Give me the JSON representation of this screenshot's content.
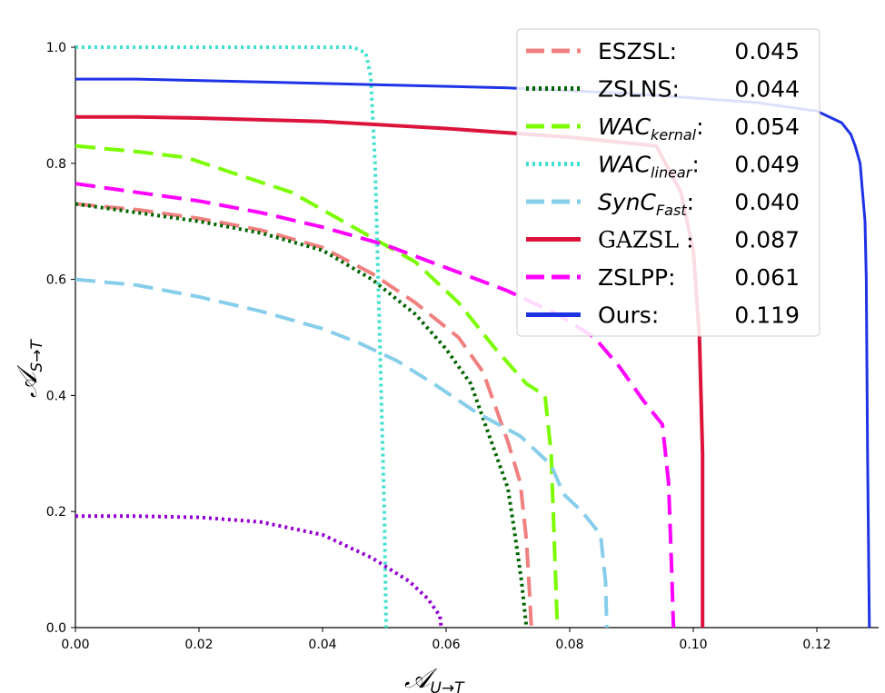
{
  "chart_data": {
    "type": "line",
    "xlabel_main": "𝒜",
    "xlabel_sub": "U→T",
    "ylabel_main": "𝒜",
    "ylabel_sub": "S→T",
    "xlim": [
      0,
      0.13
    ],
    "ylim": [
      0,
      1.0
    ],
    "xticks": [
      "0.00",
      "0.02",
      "0.04",
      "0.06",
      "0.08",
      "0.10",
      "0.12"
    ],
    "xtick_values": [
      0,
      0.02,
      0.04,
      0.06,
      0.08,
      0.1,
      0.12
    ],
    "yticks": [
      "0.0",
      "0.2",
      "0.4",
      "0.6",
      "0.8",
      "1.0"
    ],
    "ytick_values": [
      0,
      0.2,
      0.4,
      0.6,
      0.8,
      1.0
    ],
    "legend_position": "top-right",
    "series": [
      {
        "name": "ESZSL",
        "score": "0.045",
        "color": "#F08080",
        "style": "dashed",
        "x": [
          0.0,
          0.01,
          0.02,
          0.03,
          0.04,
          0.048,
          0.055,
          0.062,
          0.066,
          0.068,
          0.07,
          0.072,
          0.073,
          0.0735,
          0.0738
        ],
        "y": [
          0.73,
          0.72,
          0.705,
          0.685,
          0.655,
          0.61,
          0.56,
          0.5,
          0.44,
          0.38,
          0.32,
          0.25,
          0.15,
          0.06,
          0.0
        ]
      },
      {
        "name": "ZSLNS",
        "score": "0.044",
        "color": "#006400",
        "style": "dotted",
        "x": [
          0.0,
          0.01,
          0.02,
          0.03,
          0.04,
          0.048,
          0.055,
          0.06,
          0.064,
          0.066,
          0.068,
          0.07,
          0.071,
          0.0722,
          0.073
        ],
        "y": [
          0.73,
          0.715,
          0.7,
          0.68,
          0.65,
          0.6,
          0.54,
          0.48,
          0.42,
          0.36,
          0.3,
          0.24,
          0.17,
          0.08,
          0.0
        ]
      },
      {
        "name": "WAC_kernal",
        "label_main": "WAC",
        "label_sub": "kernal",
        "score": "0.054",
        "color": "#7CFC00",
        "style": "dashed",
        "x": [
          0.0,
          0.01,
          0.018,
          0.025,
          0.035,
          0.045,
          0.055,
          0.062,
          0.068,
          0.073,
          0.076,
          0.077,
          0.0775,
          0.078
        ],
        "y": [
          0.83,
          0.82,
          0.81,
          0.785,
          0.75,
          0.69,
          0.63,
          0.56,
          0.48,
          0.42,
          0.4,
          0.3,
          0.15,
          0.0
        ]
      },
      {
        "name": "WAC_linear",
        "label_main": "WAC",
        "label_sub": "linear",
        "score": "0.049",
        "color": "#40E0D0",
        "style": "dotted",
        "x": [
          0.0,
          0.02,
          0.045,
          0.047,
          0.0478,
          0.0485,
          0.049,
          0.0495,
          0.05,
          0.0503
        ],
        "y": [
          1.0,
          1.0,
          1.0,
          0.99,
          0.95,
          0.8,
          0.6,
          0.4,
          0.2,
          0.0
        ]
      },
      {
        "name": "SynC_Fast",
        "label_main": "SynC",
        "label_sub": "Fast",
        "score": "0.040",
        "color": "#87CEEB",
        "style": "dashed",
        "x": [
          0.0,
          0.01,
          0.02,
          0.03,
          0.04,
          0.046,
          0.052,
          0.058,
          0.065,
          0.072,
          0.077,
          0.079,
          0.082,
          0.085,
          0.0858,
          0.086
        ],
        "y": [
          0.6,
          0.59,
          0.57,
          0.545,
          0.515,
          0.49,
          0.46,
          0.42,
          0.37,
          0.33,
          0.28,
          0.23,
          0.2,
          0.16,
          0.08,
          0.0
        ]
      },
      {
        "name": "GAZSL",
        "score": "0.087",
        "color": "#DC143C",
        "style": "solid",
        "x": [
          0.0,
          0.01,
          0.02,
          0.04,
          0.06,
          0.08,
          0.094,
          0.098,
          0.1,
          0.101,
          0.1015,
          0.1015
        ],
        "y": [
          0.88,
          0.88,
          0.878,
          0.872,
          0.86,
          0.845,
          0.83,
          0.75,
          0.65,
          0.5,
          0.3,
          0.0
        ]
      },
      {
        "name": "ZSLPP",
        "score": "0.061",
        "color": "#FF00FF",
        "style": "dashed",
        "x": [
          0.0,
          0.01,
          0.02,
          0.03,
          0.04,
          0.05,
          0.06,
          0.07,
          0.078,
          0.084,
          0.088,
          0.092,
          0.095,
          0.096,
          0.0965,
          0.0968
        ],
        "y": [
          0.765,
          0.75,
          0.735,
          0.715,
          0.69,
          0.66,
          0.62,
          0.58,
          0.54,
          0.5,
          0.45,
          0.39,
          0.35,
          0.25,
          0.1,
          0.0
        ]
      },
      {
        "name": "Ours",
        "score": "0.119",
        "color": "#1E32E6",
        "style": "solid",
        "x": [
          0.0,
          0.01,
          0.03,
          0.05,
          0.07,
          0.09,
          0.11,
          0.12,
          0.124,
          0.1255,
          0.1262,
          0.127,
          0.1278,
          0.128,
          0.1282,
          0.1285
        ],
        "y": [
          0.945,
          0.945,
          0.94,
          0.935,
          0.93,
          0.92,
          0.905,
          0.89,
          0.87,
          0.85,
          0.83,
          0.8,
          0.7,
          0.6,
          0.3,
          0.0
        ]
      },
      {
        "name": "unlabeled",
        "color": "#9400D3",
        "style": "dotted",
        "x": [
          0.0,
          0.01,
          0.02,
          0.03,
          0.04,
          0.048,
          0.054,
          0.057,
          0.059,
          0.0592
        ],
        "y": [
          0.192,
          0.192,
          0.19,
          0.182,
          0.16,
          0.12,
          0.08,
          0.05,
          0.02,
          0.0
        ]
      }
    ]
  }
}
